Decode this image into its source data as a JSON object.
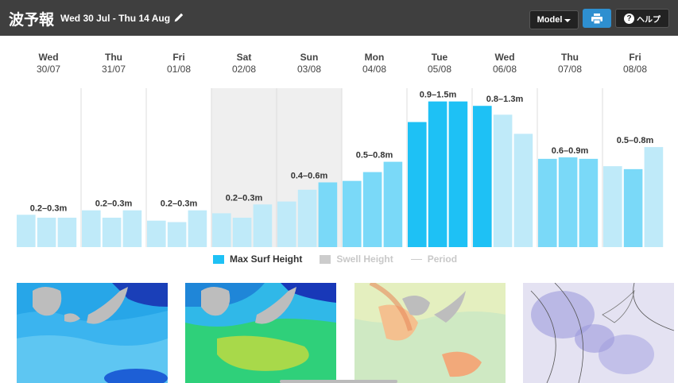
{
  "header": {
    "title": "波予報",
    "date_range": "Wed 30 Jul - Thu 14 Aug",
    "model_label": "Model",
    "help_label": "ヘルプ",
    "background": "#3f3f3f",
    "print_color": "#2e8fd0"
  },
  "days": [
    {
      "name": "Wed",
      "date": "30/07",
      "range": "0.2–0.3m"
    },
    {
      "name": "Thu",
      "date": "31/07",
      "range": "0.2–0.3m"
    },
    {
      "name": "Fri",
      "date": "01/08",
      "range": "0.2–0.3m"
    },
    {
      "name": "Sat",
      "date": "02/08",
      "range": "0.2–0.3m",
      "weekend": true
    },
    {
      "name": "Sun",
      "date": "03/08",
      "range": "0.4–0.6m",
      "weekend": true
    },
    {
      "name": "Mon",
      "date": "04/08",
      "range": "0.5–0.8m"
    },
    {
      "name": "Tue",
      "date": "05/08",
      "range": "0.9–1.5m"
    },
    {
      "name": "Wed",
      "date": "06/08",
      "range": "0.8–1.3m"
    },
    {
      "name": "Thu",
      "date": "07/08",
      "range": "0.6–0.9m"
    },
    {
      "name": "Fri",
      "date": "08/08",
      "range": "0.5–0.8m"
    }
  ],
  "chart_data": {
    "type": "bar",
    "series": [
      {
        "name": "Max Surf Height",
        "values": [
          0.22,
          0.2,
          0.2,
          0.25,
          0.2,
          0.25,
          0.18,
          0.17,
          0.25,
          0.23,
          0.2,
          0.29,
          0.31,
          0.39,
          0.44,
          0.45,
          0.51,
          0.58,
          0.85,
          0.99,
          0.99,
          0.96,
          0.9,
          0.77,
          0.6,
          0.61,
          0.6,
          0.55,
          0.53,
          0.68
        ]
      }
    ],
    "units": "m",
    "ylim": [
      0,
      1.08
    ]
  },
  "legend": {
    "max_surf": "Max Surf Height",
    "swell": "Swell Height",
    "period": "Period",
    "surf_color": "#1ec1f5",
    "swell_color": "#cccccc"
  },
  "colors": {
    "bar_light": "#bfeaf9",
    "bar_mid": "#7ad9f8",
    "bar_strong": "#1ec1f5",
    "weekend_bg": "#efefef",
    "divider": "#dddddd"
  },
  "maps": [
    {
      "name": "Max Surf Height map"
    },
    {
      "name": "Swell map"
    },
    {
      "name": "Wind map"
    },
    {
      "name": "Weather map"
    }
  ]
}
